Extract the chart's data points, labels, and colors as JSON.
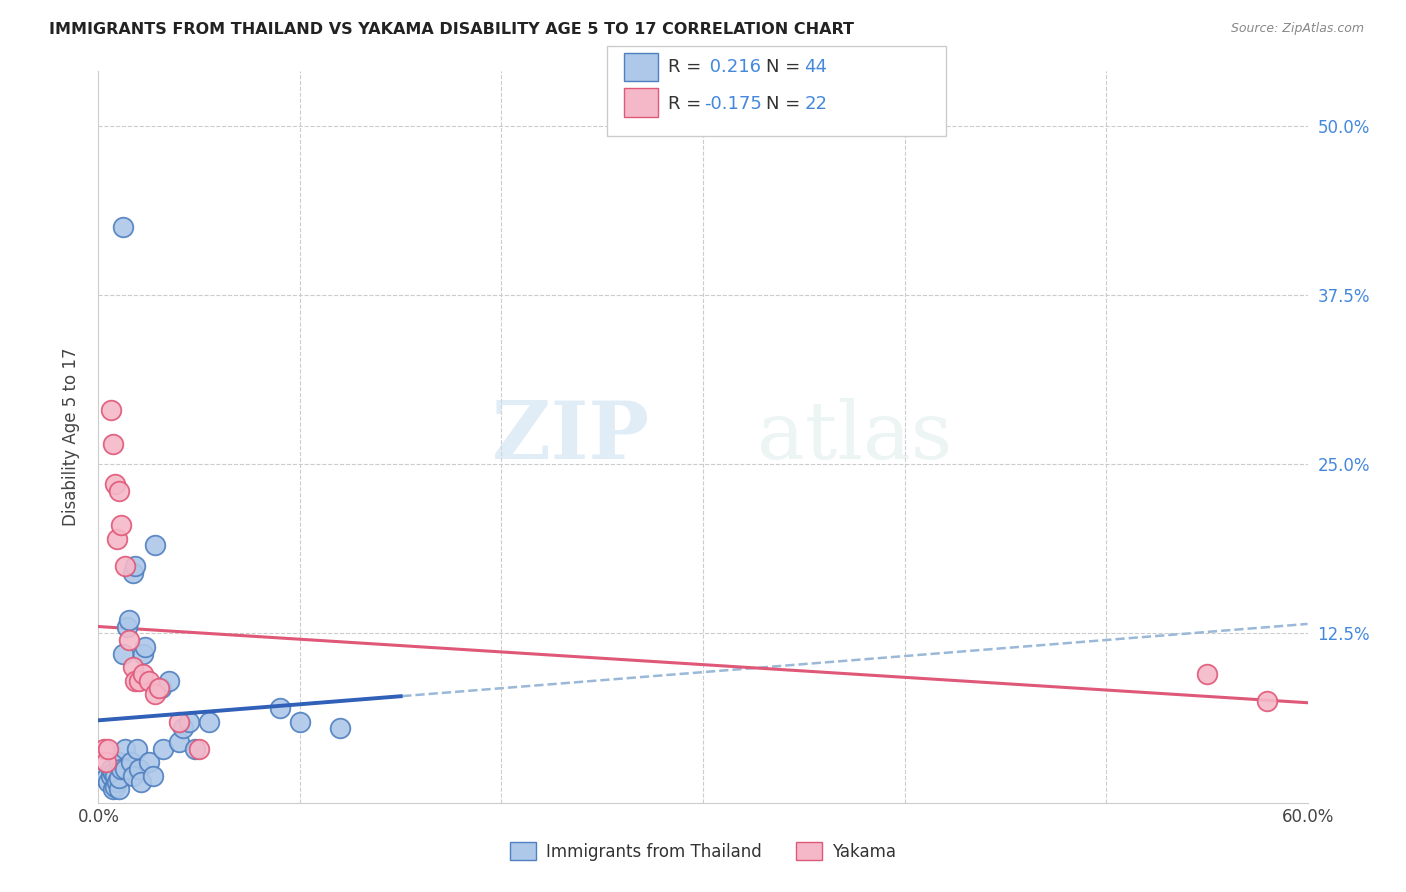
{
  "title": "IMMIGRANTS FROM THAILAND VS YAKAMA DISABILITY AGE 5 TO 17 CORRELATION CHART",
  "source": "Source: ZipAtlas.com",
  "ylabel": "Disability Age 5 to 17",
  "xlim": [
    0.0,
    0.6
  ],
  "ylim": [
    0.0,
    0.54
  ],
  "R_blue": 0.216,
  "N_blue": 44,
  "R_pink": -0.175,
  "N_pink": 22,
  "blue_fill": "#adc8e8",
  "pink_fill": "#f5b8c8",
  "blue_edge": "#5080c0",
  "pink_edge": "#e05878",
  "blue_line": "#3060b8",
  "pink_line": "#e05878",
  "dashed_color": "#9ab8d8",
  "grid_color": "#cccccc",
  "blue_scatter_x": [
    0.012,
    0.003,
    0.004,
    0.005,
    0.006,
    0.006,
    0.007,
    0.007,
    0.008,
    0.008,
    0.009,
    0.01,
    0.01,
    0.01,
    0.011,
    0.012,
    0.013,
    0.013,
    0.014,
    0.015,
    0.016,
    0.017,
    0.017,
    0.018,
    0.019,
    0.02,
    0.021,
    0.022,
    0.023,
    0.025,
    0.027,
    0.028,
    0.03,
    0.031,
    0.032,
    0.035,
    0.04,
    0.042,
    0.045,
    0.048,
    0.055,
    0.09,
    0.1,
    0.12
  ],
  "blue_scatter_y": [
    0.425,
    0.02,
    0.018,
    0.015,
    0.02,
    0.025,
    0.022,
    0.01,
    0.012,
    0.02,
    0.015,
    0.01,
    0.018,
    0.03,
    0.025,
    0.11,
    0.04,
    0.025,
    0.13,
    0.135,
    0.03,
    0.02,
    0.17,
    0.175,
    0.04,
    0.025,
    0.015,
    0.11,
    0.115,
    0.03,
    0.02,
    0.19,
    0.085,
    0.085,
    0.04,
    0.09,
    0.045,
    0.055,
    0.06,
    0.04,
    0.06,
    0.07,
    0.06,
    0.055
  ],
  "pink_scatter_x": [
    0.003,
    0.004,
    0.005,
    0.006,
    0.007,
    0.008,
    0.009,
    0.01,
    0.011,
    0.013,
    0.015,
    0.017,
    0.018,
    0.02,
    0.022,
    0.025,
    0.028,
    0.03,
    0.04,
    0.05,
    0.55,
    0.58
  ],
  "pink_scatter_y": [
    0.04,
    0.03,
    0.04,
    0.29,
    0.265,
    0.235,
    0.195,
    0.23,
    0.205,
    0.175,
    0.12,
    0.1,
    0.09,
    0.09,
    0.095,
    0.09,
    0.08,
    0.085,
    0.06,
    0.04,
    0.095,
    0.075
  ],
  "legend_title_blue": "Immigrants from Thailand",
  "legend_title_pink": "Yakama",
  "watermark_zip": "ZIP",
  "watermark_atlas": "atlas"
}
